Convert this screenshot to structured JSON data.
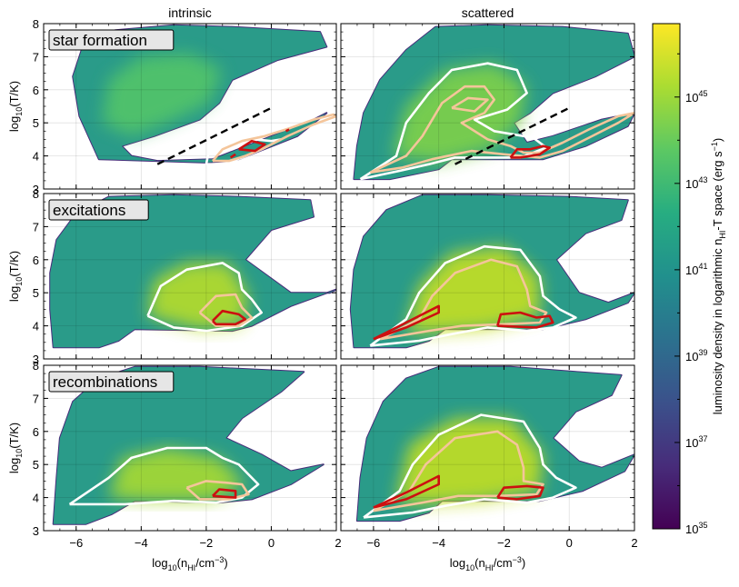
{
  "chart_data": {
    "type": "heatmap",
    "description_free": true,
    "columns": [
      "intrinsic",
      "scattered"
    ],
    "rows": [
      "star formation",
      "excitations",
      "recombinations"
    ],
    "xlabel": "log10(nHI/cm−3)",
    "ylabel": "log10(T/K)",
    "xlim": [
      -7,
      2
    ],
    "ylim": [
      3,
      8
    ],
    "xticks": [
      -6,
      -4,
      -2,
      0,
      2
    ],
    "yticks": [
      3,
      4,
      5,
      6,
      7,
      8
    ],
    "colorbar": {
      "label": "luminosity density in logarithmic nHI-T space (erg s−1)",
      "log_range": [
        35,
        46.7
      ],
      "ticks": [
        35,
        37,
        39,
        41,
        43,
        45
      ],
      "colors": [
        "#440154",
        "#472c7a",
        "#3b518b",
        "#2c718e",
        "#21908d",
        "#27ad81",
        "#5cc863",
        "#aadc32",
        "#fde725"
      ]
    },
    "dashed_line": {
      "x": [
        -3.5,
        0
      ],
      "y": [
        3.75,
        5.45
      ]
    }
  }
}
